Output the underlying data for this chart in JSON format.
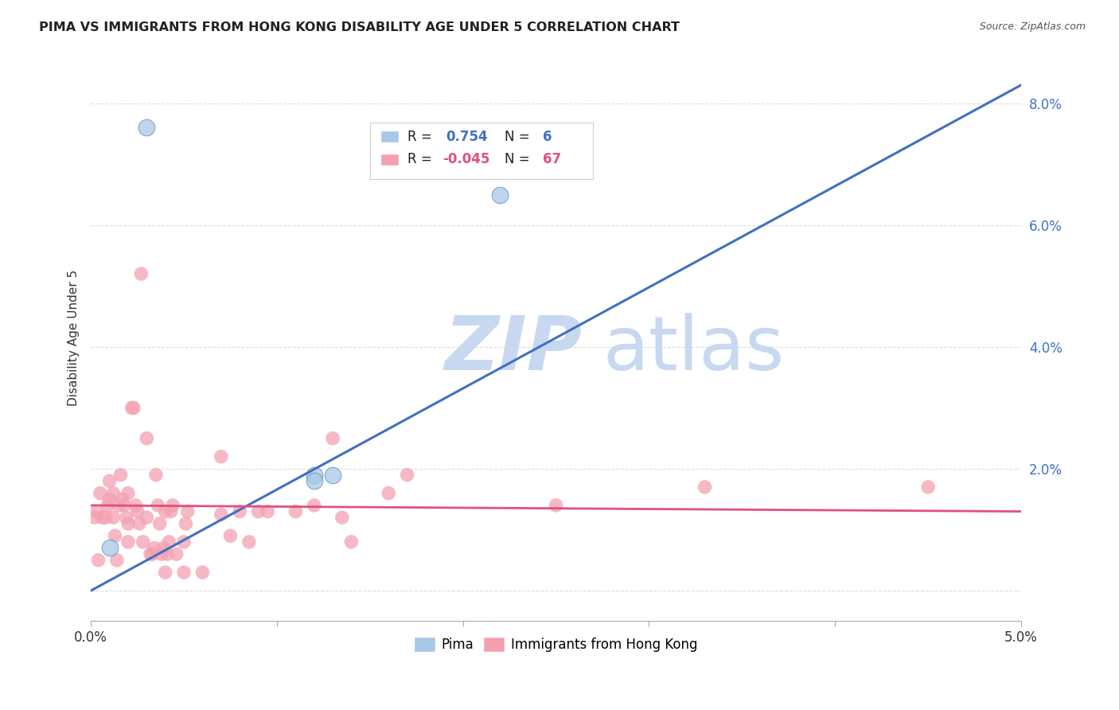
{
  "title": "PIMA VS IMMIGRANTS FROM HONG KONG DISABILITY AGE UNDER 5 CORRELATION CHART",
  "source": "Source: ZipAtlas.com",
  "ylabel": "Disability Age Under 5",
  "xlim": [
    0.0,
    0.05
  ],
  "ylim": [
    -0.005,
    0.088
  ],
  "xticks": [
    0.0,
    0.01,
    0.02,
    0.03,
    0.04,
    0.05
  ],
  "xticklabels_show": [
    "0.0%",
    "",
    "",
    "",
    "",
    "5.0%"
  ],
  "yticks": [
    0.0,
    0.02,
    0.04,
    0.06,
    0.08
  ],
  "yticklabels": [
    "",
    "2.0%",
    "4.0%",
    "6.0%",
    "8.0%"
  ],
  "pima_color": "#A8C8E8",
  "pima_edge_color": "#6090C0",
  "hk_color": "#F4A0B0",
  "hk_edge_color": "#F4A0B0",
  "pima_label": "Pima",
  "hk_label": "Immigrants from Hong Kong",
  "pima_R": "0.754",
  "pima_N": "6",
  "hk_R": "-0.045",
  "hk_N": "67",
  "line_blue": "#4070C0",
  "line_pink": "#E05080",
  "R_color_blue": "#4070C0",
  "R_color_pink": "#E05080",
  "watermark_zip": "ZIP",
  "watermark_atlas": "atlas",
  "watermark_color": "#C8D8F0",
  "background_color": "#FFFFFF",
  "grid_color": "#DDDDDD",
  "pima_points": [
    [
      0.003,
      0.076
    ],
    [
      0.022,
      0.065
    ],
    [
      0.012,
      0.019
    ],
    [
      0.012,
      0.018
    ],
    [
      0.001,
      0.007
    ],
    [
      0.013,
      0.019
    ]
  ],
  "hk_points": [
    [
      0.0002,
      0.012
    ],
    [
      0.0003,
      0.013
    ],
    [
      0.0004,
      0.005
    ],
    [
      0.0005,
      0.016
    ],
    [
      0.0006,
      0.012
    ],
    [
      0.0008,
      0.012
    ],
    [
      0.0009,
      0.014
    ],
    [
      0.001,
      0.015
    ],
    [
      0.001,
      0.018
    ],
    [
      0.0012,
      0.016
    ],
    [
      0.0012,
      0.012
    ],
    [
      0.0013,
      0.009
    ],
    [
      0.0014,
      0.005
    ],
    [
      0.0015,
      0.014
    ],
    [
      0.0016,
      0.019
    ],
    [
      0.0017,
      0.015
    ],
    [
      0.0018,
      0.014
    ],
    [
      0.0019,
      0.012
    ],
    [
      0.002,
      0.008
    ],
    [
      0.002,
      0.016
    ],
    [
      0.002,
      0.011
    ],
    [
      0.0022,
      0.03
    ],
    [
      0.0023,
      0.03
    ],
    [
      0.0024,
      0.014
    ],
    [
      0.0025,
      0.013
    ],
    [
      0.0026,
      0.011
    ],
    [
      0.0027,
      0.052
    ],
    [
      0.0028,
      0.008
    ],
    [
      0.003,
      0.025
    ],
    [
      0.003,
      0.012
    ],
    [
      0.0032,
      0.006
    ],
    [
      0.0033,
      0.006
    ],
    [
      0.0034,
      0.007
    ],
    [
      0.0035,
      0.019
    ],
    [
      0.0036,
      0.014
    ],
    [
      0.0037,
      0.011
    ],
    [
      0.0038,
      0.006
    ],
    [
      0.0039,
      0.007
    ],
    [
      0.004,
      0.003
    ],
    [
      0.004,
      0.013
    ],
    [
      0.0041,
      0.006
    ],
    [
      0.0042,
      0.008
    ],
    [
      0.0043,
      0.013
    ],
    [
      0.0044,
      0.014
    ],
    [
      0.0046,
      0.006
    ],
    [
      0.005,
      0.003
    ],
    [
      0.005,
      0.008
    ],
    [
      0.0051,
      0.011
    ],
    [
      0.0052,
      0.013
    ],
    [
      0.006,
      0.003
    ],
    [
      0.007,
      0.022
    ],
    [
      0.007,
      0.0125
    ],
    [
      0.0075,
      0.009
    ],
    [
      0.008,
      0.013
    ],
    [
      0.0085,
      0.008
    ],
    [
      0.009,
      0.013
    ],
    [
      0.0095,
      0.013
    ],
    [
      0.011,
      0.013
    ],
    [
      0.012,
      0.014
    ],
    [
      0.013,
      0.025
    ],
    [
      0.0135,
      0.012
    ],
    [
      0.014,
      0.008
    ],
    [
      0.016,
      0.016
    ],
    [
      0.017,
      0.019
    ],
    [
      0.025,
      0.014
    ],
    [
      0.033,
      0.017
    ],
    [
      0.045,
      0.017
    ]
  ],
  "blue_line_x": [
    0.0,
    0.05
  ],
  "blue_line_y": [
    0.0,
    0.083
  ],
  "pink_line_x": [
    0.0,
    0.05
  ],
  "pink_line_y": [
    0.014,
    0.013
  ]
}
